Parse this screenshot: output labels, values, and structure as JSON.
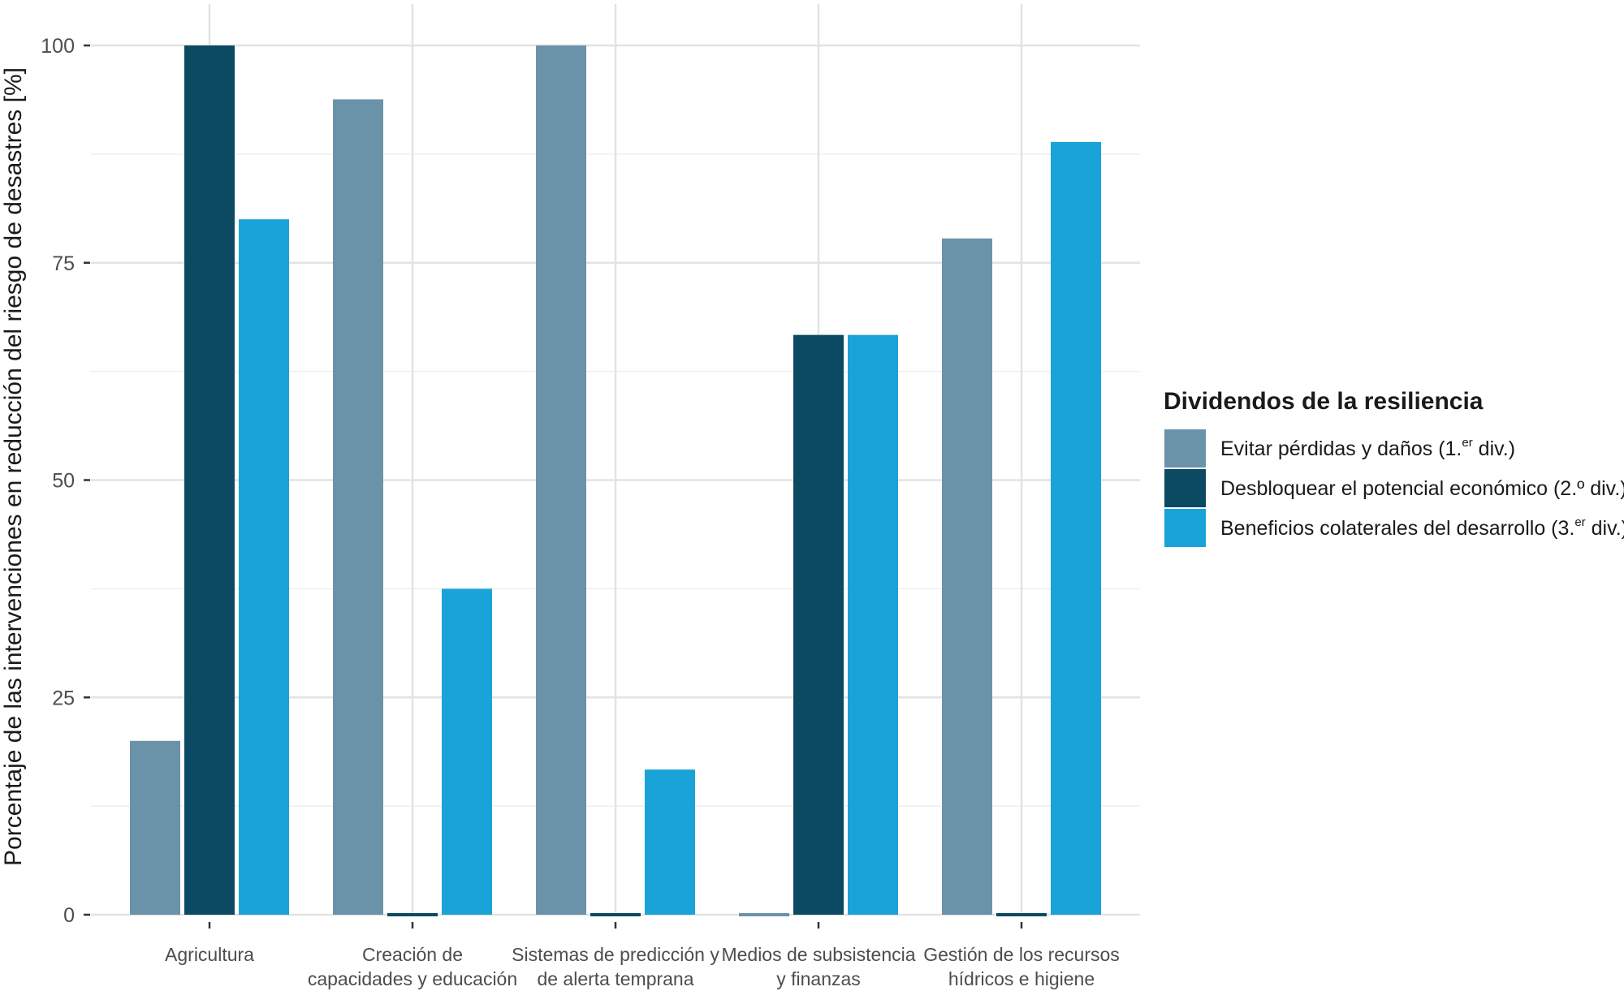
{
  "chart_data": {
    "type": "bar",
    "categories": [
      [
        "Agricultura"
      ],
      [
        "Creación de",
        "capacidades y educación"
      ],
      [
        "Sistemas de predicción y",
        "de alerta temprana"
      ],
      [
        "Medios de subsistencia",
        "y finanzas"
      ],
      [
        "Gestión de los recursos",
        "hídricos e higiene"
      ]
    ],
    "series": [
      {
        "name": "Evitar pérdidas y daños (1.er div.)",
        "name_main": "Evitar pérdidas y daños (1.",
        "name_sup": "er",
        "name_tail": " div.)",
        "color": "#6a93aa",
        "values": [
          20,
          93.8,
          100,
          0,
          77.8
        ]
      },
      {
        "name": "Desbloquear el potencial económico (2.º div.)",
        "name_main": "Desbloquear el potencial económico (2.º div.)",
        "name_sup": "",
        "name_tail": "",
        "color": "#0b4a62",
        "values": [
          100,
          0,
          0,
          66.7,
          0
        ]
      },
      {
        "name": "Beneficios colaterales del desarrollo (3.er div.)",
        "name_main": "Beneficios colaterales del desarrollo (3.",
        "name_sup": "er",
        "name_tail": " div.)",
        "color": "#1aa3d9",
        "values": [
          80,
          37.5,
          16.7,
          66.7,
          88.9
        ]
      }
    ],
    "ylabel": "Porcentaje de las intervenciones en reducción del riesgo de desastres [%]",
    "xlabel": "",
    "ylim": [
      0,
      100
    ],
    "yticks": [
      0,
      25,
      50,
      75,
      100
    ],
    "grid": true,
    "legend_title": "Dividendos de la resiliencia",
    "legend_position": "right"
  }
}
